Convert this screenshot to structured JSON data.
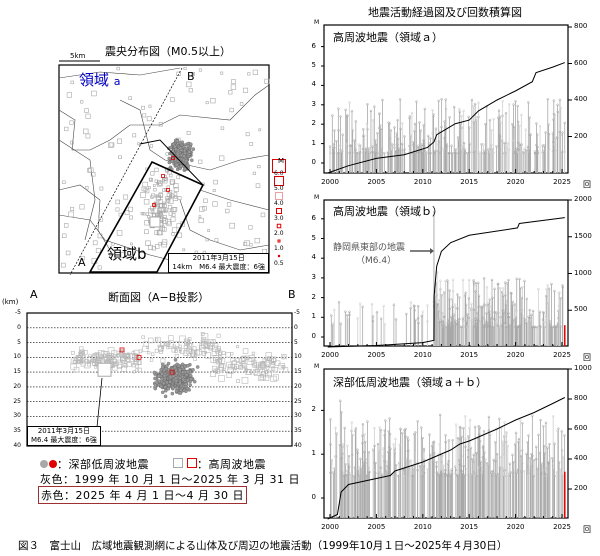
{
  "map": {
    "title": "震央分布図（M0.5以上）",
    "scale_label": "5km",
    "region_a_label": "領域",
    "region_a_suffix": "a",
    "region_b_label": "領域b",
    "point_a": "A",
    "point_b": "B",
    "callout_line1": "2011年3月15日",
    "callout_line2": "14km　M6.4 最大震度：6強",
    "magnitude_legend": {
      "label": "M",
      "values": [
        "6.0",
        "5.0",
        "4.0",
        "3.0",
        "2.0",
        "1.0",
        "0.5"
      ]
    },
    "region_a_color": "#0000c0"
  },
  "section": {
    "title": "断面図（A−B投影）",
    "point_a": "A",
    "point_b": "B",
    "unit": "(km)",
    "depth_ticks": [
      "-5",
      "0",
      "5",
      "10",
      "15",
      "20",
      "25",
      "30",
      "35",
      "40"
    ],
    "callout_line1": "2011年3月15日",
    "callout_line2": "M6.4 最大震度：6強"
  },
  "legend": {
    "lf_label": "：深部低周波地震",
    "hf_label": "：高周波地震",
    "gray_period": "灰色：1999 年 10 月 1 日～2025 年 3 月 31 日",
    "red_period": "赤色：2025 年 4 月 1 日～4 月 30 日",
    "gray_color": "#a8a8a8",
    "red_color": "#e00000"
  },
  "caption": "図３　富士山　広域地震観測網による山体及び周辺の地震活動（1999年10月１日～2025年４月30日）",
  "charts_title": "地震活動経過図及び回数積算図",
  "chart_data": [
    {
      "type": "line",
      "title": "高周波地震（領域ａ）",
      "ylabel": "M",
      "y2label": "回",
      "xlim": [
        2000,
        2025
      ],
      "x_ticks": [
        "2000",
        "2005",
        "2010",
        "2015",
        "2020",
        "2025"
      ],
      "y_ticks": [
        "0",
        "1",
        "2",
        "3",
        "4",
        "5",
        "6"
      ],
      "y2_ticks": [
        "200",
        "400",
        "600",
        "800"
      ],
      "ylim": [
        -0.5,
        7.1
      ],
      "y2lim": [
        0,
        800
      ],
      "series": [
        {
          "kind": "cumulative count",
          "x": [
            1999.75,
            2002,
            2005,
            2008,
            2010.5,
            2011.2,
            2011.5,
            2013.5,
            2015,
            2016,
            2018,
            2020,
            2021.8,
            2022.2,
            2024,
            2025.3
          ],
          "y": [
            0,
            40,
            80,
            100,
            140,
            170,
            210,
            270,
            290,
            340,
            400,
            450,
            500,
            550,
            580,
            605
          ]
        }
      ],
      "stems": "magnitude-time stems, M≈0.5–3.5"
    },
    {
      "type": "line",
      "title": "高周波地震（領域ｂ）",
      "annotation": "静岡県東部の地震",
      "annotation_sub": "（M6.4）",
      "ylabel": "M",
      "y2label": "回",
      "xlim": [
        2000,
        2025
      ],
      "x_ticks": [
        "2000",
        "2005",
        "2010",
        "2015",
        "2020",
        "2025"
      ],
      "y_ticks": [
        "0",
        "1",
        "2",
        "3",
        "4",
        "5",
        "6"
      ],
      "y2_ticks": [
        "500",
        "1000",
        "1500",
        "2000"
      ],
      "ylim": [
        -0.5,
        6.9
      ],
      "y2lim": [
        0,
        2000
      ],
      "series": [
        {
          "kind": "cumulative count",
          "x": [
            1999.75,
            2001,
            2005,
            2010,
            2011.2,
            2011.22,
            2011.5,
            2012,
            2013,
            2015,
            2020.2,
            2020.4,
            2025.3
          ],
          "y": [
            0,
            5,
            20,
            60,
            90,
            700,
            1100,
            1300,
            1420,
            1520,
            1620,
            1680,
            1760
          ]
        }
      ],
      "stems": "magnitude-time stems, mainshock M6.4 on 2011-03-15"
    },
    {
      "type": "line",
      "title": "深部低周波地震（領域ａ＋ｂ）",
      "ylabel": "M",
      "y2label": "回",
      "xlim": [
        2000,
        2025
      ],
      "x_ticks": [
        "2000",
        "2005",
        "2010",
        "2015",
        "2020",
        "2025"
      ],
      "y_ticks": [
        "0",
        "1",
        "2"
      ],
      "y2_ticks": [
        "200",
        "400",
        "600",
        "800",
        "1000"
      ],
      "ylim": [
        -0.46,
        2.92
      ],
      "y2lim": [
        0,
        1000
      ],
      "series": [
        {
          "kind": "cumulative count",
          "x": [
            1999.75,
            2000.8,
            2001.2,
            2002,
            2005,
            2006.5,
            2007,
            2010,
            2013,
            2014,
            2015,
            2018,
            2020,
            2022,
            2024,
            2025.3
          ],
          "y": [
            0,
            30,
            180,
            230,
            270,
            290,
            320,
            380,
            460,
            500,
            520,
            600,
            660,
            710,
            770,
            810
          ]
        }
      ],
      "stems": "magnitude-time stems, M≈0.5–2.0"
    }
  ]
}
